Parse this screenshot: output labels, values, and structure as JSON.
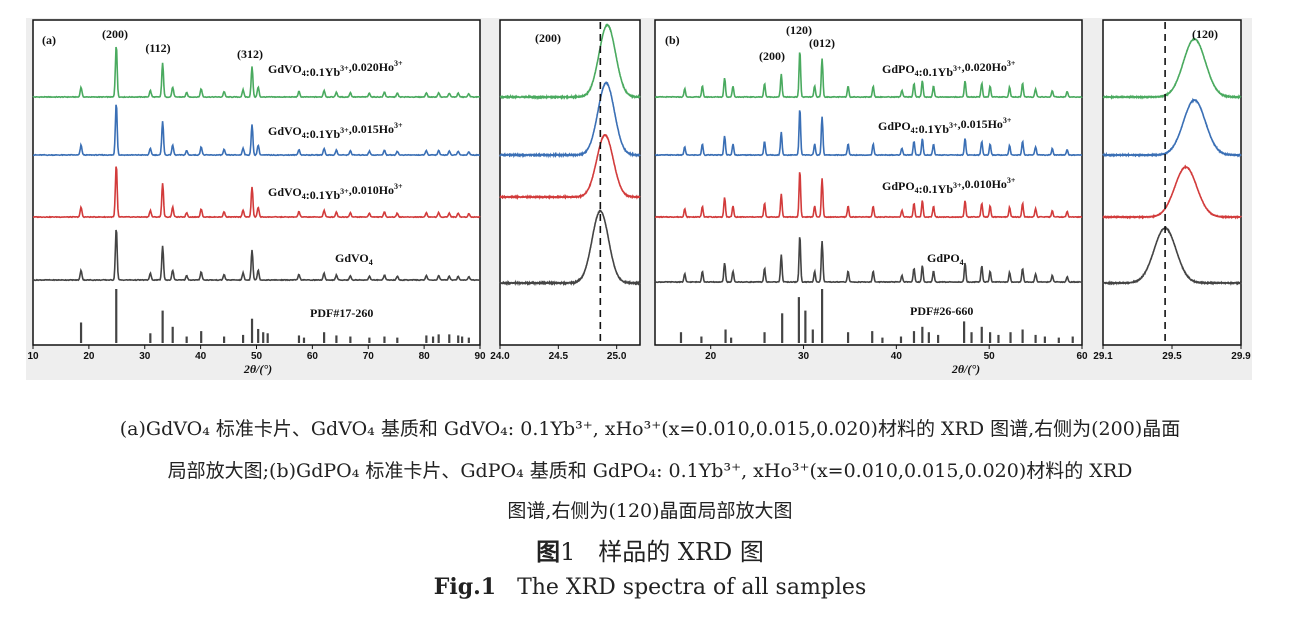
{
  "chart_data": [
    {
      "type": "line",
      "panel_label": "(a)",
      "xlabel": "2θ/(°)",
      "xlim": [
        10,
        90
      ],
      "x_ticks": [
        "10",
        "20",
        "30",
        "40",
        "50",
        "60",
        "70",
        "80",
        "90"
      ],
      "peak_labels": [
        "(200)",
        "(112)",
        "(312)"
      ],
      "series": [
        {
          "name": "GdVO4:0.1Yb3+,0.020Ho3+",
          "color": "#4aaa5f",
          "peaks": [
            [
              18.6,
              0.18
            ],
            [
              24.9,
              0.95
            ],
            [
              31.0,
              0.12
            ],
            [
              33.2,
              0.62
            ],
            [
              35.0,
              0.18
            ],
            [
              37.5,
              0.08
            ],
            [
              40.1,
              0.15
            ],
            [
              44.2,
              0.1
            ],
            [
              47.6,
              0.13
            ],
            [
              49.2,
              0.55
            ],
            [
              50.3,
              0.18
            ],
            [
              57.6,
              0.1
            ],
            [
              62.1,
              0.12
            ],
            [
              64.3,
              0.09
            ],
            [
              66.8,
              0.08
            ],
            [
              70.2,
              0.07
            ],
            [
              72.9,
              0.09
            ],
            [
              75.2,
              0.07
            ],
            [
              80.4,
              0.08
            ],
            [
              82.6,
              0.08
            ],
            [
              84.5,
              0.07
            ],
            [
              86.1,
              0.07
            ],
            [
              88.0,
              0.06
            ]
          ]
        },
        {
          "name": "GdVO4:0.1Yb3+,0.015Ho3+",
          "color": "#3a6fb5",
          "peaks": [
            [
              18.6,
              0.18
            ],
            [
              24.9,
              0.95
            ],
            [
              31.0,
              0.12
            ],
            [
              33.2,
              0.62
            ],
            [
              35.0,
              0.18
            ],
            [
              37.5,
              0.08
            ],
            [
              40.1,
              0.15
            ],
            [
              44.2,
              0.1
            ],
            [
              47.6,
              0.13
            ],
            [
              49.2,
              0.55
            ],
            [
              50.3,
              0.18
            ],
            [
              57.6,
              0.1
            ],
            [
              62.1,
              0.12
            ],
            [
              64.3,
              0.09
            ],
            [
              66.8,
              0.08
            ],
            [
              70.2,
              0.07
            ],
            [
              72.9,
              0.09
            ],
            [
              75.2,
              0.07
            ],
            [
              80.4,
              0.08
            ],
            [
              82.6,
              0.08
            ],
            [
              84.5,
              0.07
            ],
            [
              86.1,
              0.07
            ],
            [
              88.0,
              0.06
            ]
          ]
        },
        {
          "name": "GdVO4:0.1Yb3+,0.010Ho3+",
          "color": "#d23b3b",
          "peaks": [
            [
              18.6,
              0.18
            ],
            [
              24.9,
              0.95
            ],
            [
              31.0,
              0.12
            ],
            [
              33.2,
              0.62
            ],
            [
              35.0,
              0.18
            ],
            [
              37.5,
              0.08
            ],
            [
              40.1,
              0.15
            ],
            [
              44.2,
              0.1
            ],
            [
              47.6,
              0.13
            ],
            [
              49.2,
              0.55
            ],
            [
              50.3,
              0.18
            ],
            [
              57.6,
              0.1
            ],
            [
              62.1,
              0.12
            ],
            [
              64.3,
              0.09
            ],
            [
              66.8,
              0.08
            ],
            [
              70.2,
              0.07
            ],
            [
              72.9,
              0.09
            ],
            [
              75.2,
              0.07
            ],
            [
              80.4,
              0.08
            ],
            [
              82.6,
              0.08
            ],
            [
              84.5,
              0.07
            ],
            [
              86.1,
              0.07
            ],
            [
              88.0,
              0.06
            ]
          ]
        },
        {
          "name": "GdVO4",
          "color": "#444444",
          "peaks": [
            [
              18.6,
              0.18
            ],
            [
              24.9,
              0.95
            ],
            [
              31.0,
              0.12
            ],
            [
              33.2,
              0.62
            ],
            [
              35.0,
              0.18
            ],
            [
              37.5,
              0.08
            ],
            [
              40.1,
              0.15
            ],
            [
              44.2,
              0.1
            ],
            [
              47.6,
              0.13
            ],
            [
              49.2,
              0.55
            ],
            [
              50.3,
              0.18
            ],
            [
              57.6,
              0.1
            ],
            [
              62.1,
              0.12
            ],
            [
              64.3,
              0.09
            ],
            [
              66.8,
              0.08
            ],
            [
              70.2,
              0.07
            ],
            [
              72.9,
              0.09
            ],
            [
              75.2,
              0.07
            ],
            [
              80.4,
              0.08
            ],
            [
              82.6,
              0.08
            ],
            [
              84.5,
              0.07
            ],
            [
              86.1,
              0.07
            ],
            [
              88.0,
              0.06
            ]
          ]
        }
      ],
      "reference": {
        "name": "PDF#17-260",
        "sticks": [
          [
            18.6,
            0.38
          ],
          [
            24.9,
            1.0
          ],
          [
            31.0,
            0.18
          ],
          [
            33.2,
            0.6
          ],
          [
            35.0,
            0.3
          ],
          [
            37.5,
            0.12
          ],
          [
            40.1,
            0.22
          ],
          [
            44.2,
            0.12
          ],
          [
            47.6,
            0.15
          ],
          [
            49.2,
            0.45
          ],
          [
            50.3,
            0.26
          ],
          [
            51.2,
            0.2
          ],
          [
            52.0,
            0.18
          ],
          [
            57.6,
            0.14
          ],
          [
            58.5,
            0.1
          ],
          [
            62.1,
            0.2
          ],
          [
            64.3,
            0.14
          ],
          [
            66.8,
            0.12
          ],
          [
            70.2,
            0.1
          ],
          [
            72.9,
            0.12
          ],
          [
            75.2,
            0.1
          ],
          [
            80.4,
            0.14
          ],
          [
            81.6,
            0.12
          ],
          [
            82.6,
            0.16
          ],
          [
            84.5,
            0.16
          ],
          [
            86.1,
            0.14
          ],
          [
            86.8,
            0.12
          ],
          [
            88.0,
            0.1
          ]
        ]
      }
    },
    {
      "type": "line",
      "panel": "(200) zoom",
      "xlim": [
        24.0,
        25.2
      ],
      "x_ticks": [
        "24.0",
        "24.5",
        "25.0"
      ],
      "peak_label": "(200)",
      "reference_line": 24.86,
      "peaks": {
        "GdVO4:0.1Yb3+,0.020Ho3+": 24.92,
        "GdVO4:0.1Yb3+,0.015Ho3+": 24.91,
        "GdVO4:0.1Yb3+,0.010Ho3+": 24.9,
        "GdVO4": 24.86
      }
    },
    {
      "type": "line",
      "panel_label": "(b)",
      "xlabel": "2θ/(°)",
      "xlim": [
        14,
        60
      ],
      "x_ticks": [
        "20",
        "30",
        "40",
        "50",
        "60"
      ],
      "peak_labels": [
        "(200)",
        "(120)",
        "(012)"
      ],
      "series": [
        {
          "name": "GdPO4:0.1Yb3+,0.020Ho3+",
          "color": "#4aaa5f",
          "peaks": [
            [
              17.2,
              0.15
            ],
            [
              19.1,
              0.2
            ],
            [
              21.5,
              0.35
            ],
            [
              22.4,
              0.2
            ],
            [
              25.8,
              0.25
            ],
            [
              27.6,
              0.42
            ],
            [
              29.6,
              0.85
            ],
            [
              31.2,
              0.2
            ],
            [
              32.0,
              0.7
            ],
            [
              34.8,
              0.2
            ],
            [
              37.5,
              0.2
            ],
            [
              40.6,
              0.12
            ],
            [
              41.9,
              0.25
            ],
            [
              42.8,
              0.3
            ],
            [
              44.0,
              0.2
            ],
            [
              47.4,
              0.3
            ],
            [
              49.2,
              0.25
            ],
            [
              50.1,
              0.2
            ],
            [
              52.2,
              0.18
            ],
            [
              53.6,
              0.25
            ],
            [
              55.0,
              0.15
            ],
            [
              56.8,
              0.12
            ],
            [
              58.4,
              0.1
            ]
          ]
        },
        {
          "name": "GdPO4:0.1Yb3+,0.015Ho3+",
          "color": "#3a6fb5",
          "peaks": [
            [
              17.2,
              0.15
            ],
            [
              19.1,
              0.2
            ],
            [
              21.5,
              0.35
            ],
            [
              22.4,
              0.2
            ],
            [
              25.8,
              0.25
            ],
            [
              27.6,
              0.42
            ],
            [
              29.6,
              0.85
            ],
            [
              31.2,
              0.2
            ],
            [
              32.0,
              0.7
            ],
            [
              34.8,
              0.2
            ],
            [
              37.5,
              0.2
            ],
            [
              40.6,
              0.12
            ],
            [
              41.9,
              0.25
            ],
            [
              42.8,
              0.3
            ],
            [
              44.0,
              0.2
            ],
            [
              47.4,
              0.3
            ],
            [
              49.2,
              0.25
            ],
            [
              50.1,
              0.2
            ],
            [
              52.2,
              0.18
            ],
            [
              53.6,
              0.25
            ],
            [
              55.0,
              0.15
            ],
            [
              56.8,
              0.12
            ],
            [
              58.4,
              0.1
            ]
          ]
        },
        {
          "name": "GdPO4:0.1Yb3+,0.010Ho3+",
          "color": "#d23b3b",
          "peaks": [
            [
              17.2,
              0.15
            ],
            [
              19.1,
              0.2
            ],
            [
              21.5,
              0.35
            ],
            [
              22.4,
              0.2
            ],
            [
              25.8,
              0.25
            ],
            [
              27.6,
              0.42
            ],
            [
              29.6,
              0.85
            ],
            [
              31.2,
              0.2
            ],
            [
              32.0,
              0.7
            ],
            [
              34.8,
              0.2
            ],
            [
              37.5,
              0.2
            ],
            [
              40.6,
              0.12
            ],
            [
              41.9,
              0.25
            ],
            [
              42.8,
              0.3
            ],
            [
              44.0,
              0.2
            ],
            [
              47.4,
              0.3
            ],
            [
              49.2,
              0.25
            ],
            [
              50.1,
              0.2
            ],
            [
              52.2,
              0.18
            ],
            [
              53.6,
              0.25
            ],
            [
              55.0,
              0.15
            ],
            [
              56.8,
              0.12
            ],
            [
              58.4,
              0.1
            ]
          ]
        },
        {
          "name": "GdPO4",
          "color": "#444444",
          "peaks": [
            [
              17.2,
              0.15
            ],
            [
              19.1,
              0.2
            ],
            [
              21.5,
              0.35
            ],
            [
              22.4,
              0.2
            ],
            [
              25.8,
              0.25
            ],
            [
              27.6,
              0.5
            ],
            [
              29.6,
              0.85
            ],
            [
              31.2,
              0.2
            ],
            [
              32.0,
              0.75
            ],
            [
              34.8,
              0.2
            ],
            [
              37.5,
              0.2
            ],
            [
              40.6,
              0.12
            ],
            [
              41.9,
              0.25
            ],
            [
              42.8,
              0.3
            ],
            [
              44.0,
              0.2
            ],
            [
              47.4,
              0.35
            ],
            [
              49.2,
              0.3
            ],
            [
              50.1,
              0.2
            ],
            [
              52.2,
              0.18
            ],
            [
              53.6,
              0.25
            ],
            [
              55.0,
              0.15
            ],
            [
              56.8,
              0.12
            ],
            [
              58.4,
              0.1
            ]
          ]
        }
      ],
      "reference": {
        "name": "PDF#26-660",
        "sticks": [
          [
            16.8,
            0.2
          ],
          [
            19.0,
            0.12
          ],
          [
            21.6,
            0.25
          ],
          [
            22.2,
            0.1
          ],
          [
            25.8,
            0.2
          ],
          [
            27.7,
            0.55
          ],
          [
            29.5,
            0.85
          ],
          [
            30.2,
            0.6
          ],
          [
            31.0,
            0.25
          ],
          [
            32.0,
            1.0
          ],
          [
            34.8,
            0.2
          ],
          [
            37.4,
            0.22
          ],
          [
            38.5,
            0.1
          ],
          [
            40.5,
            0.12
          ],
          [
            41.9,
            0.22
          ],
          [
            42.8,
            0.3
          ],
          [
            43.5,
            0.2
          ],
          [
            44.5,
            0.15
          ],
          [
            47.3,
            0.4
          ],
          [
            48.1,
            0.2
          ],
          [
            49.2,
            0.3
          ],
          [
            50.1,
            0.2
          ],
          [
            51.0,
            0.15
          ],
          [
            52.3,
            0.2
          ],
          [
            53.6,
            0.25
          ],
          [
            55.0,
            0.15
          ],
          [
            56.0,
            0.12
          ],
          [
            57.5,
            0.1
          ],
          [
            59.0,
            0.12
          ]
        ]
      }
    },
    {
      "type": "line",
      "panel": "(120) zoom",
      "xlim": [
        29.1,
        29.9
      ],
      "x_ticks": [
        "29.1",
        "29.5",
        "29.9"
      ],
      "peak_label": "(120)",
      "reference_line": 29.46,
      "peaks": {
        "GdPO4:0.1Yb3+,0.020Ho3+": 29.63,
        "GdPO4:0.1Yb3+,0.015Ho3+": 29.63,
        "GdPO4:0.1Yb3+,0.010Ho3+": 29.58,
        "GdPO4": 29.46
      }
    }
  ],
  "caption": {
    "line1": "(a)GdVO₄ 标准卡片、GdVO₄ 基质和 GdVO₄: 0.1Yb³⁺, xHo³⁺(x=0.010,0.015,0.020)材料的 XRD 图谱,右侧为(200)晶面",
    "line2": "局部放大图;(b)GdPO₄ 标准卡片、GdPO₄ 基质和 GdPO₄: 0.1Yb³⁺, xHo³⁺(x=0.010,0.015,0.020)材料的 XRD",
    "line3": "图谱,右侧为(120)晶面局部放大图",
    "title_label": "图",
    "title_num": "1",
    "title_text": "样品的 XRD 图",
    "en_label": "Fig.1",
    "en_text": "The XRD spectra of all samples"
  },
  "labels": {
    "a_green": "GdVO4:0.1Yb3+,0.020Ho3+",
    "a_blue": "GdVO4:0.1Yb3+,0.015Ho3+",
    "a_red": "GdVO4:0.1Yb3+,0.010Ho3+",
    "a_black": "GdVO4",
    "a_ref": "PDF#17-260",
    "b_green": "GdPO4:0.1Yb3+,0.020Ho3+",
    "b_blue": "GdPO4:0.1Yb3+,0.015Ho3+",
    "b_red": "GdPO4:0.1Yb3+,0.010Ho3+",
    "b_black": "GdPO4",
    "b_ref": "PDF#26-660"
  }
}
